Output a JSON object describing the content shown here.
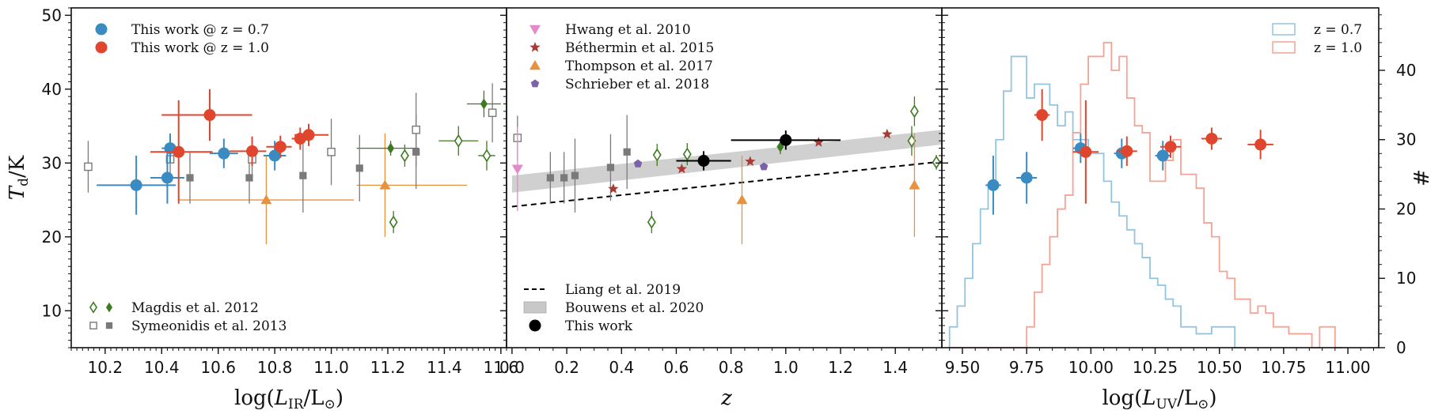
{
  "colors": {
    "blue": "#3a8bc2",
    "red": "#e0462d",
    "green": "#3e7a22",
    "grey": "#7a7a7a",
    "pink": "#e58ac8",
    "brown": "#a83b36",
    "orange": "#e8913f",
    "purple": "#7b62a9",
    "band": "#c8c8c8",
    "hist_blue": "#93c4e0",
    "hist_red": "#f4a394"
  },
  "chart_data": [
    {
      "type": "scatter",
      "xlabel": "log(L_IR/L_⊙)",
      "ylabel": "T_d/K",
      "xlim": [
        10.08,
        11.62
      ],
      "ylim": [
        5,
        51
      ],
      "xticks": [
        "10.2",
        "10.4",
        "10.6",
        "10.8",
        "11.0",
        "11.2",
        "11.4",
        "11.6"
      ],
      "yticks": [
        "10",
        "20",
        "30",
        "40",
        "50"
      ],
      "legend_top": [
        "This work @ z = 0.7",
        "This work @ z = 1.0"
      ],
      "legend_bottom": [
        "Magdis et al. 2012",
        "Symeonidis et al. 2013"
      ],
      "series": [
        {
          "name": "This work @ z = 0.7",
          "color": "blue",
          "marker": "circle",
          "points": [
            [
              10.31,
              27,
              0.14,
              0.14,
              4
            ],
            [
              10.42,
              28,
              0.06,
              0.06,
              3.5
            ],
            [
              10.43,
              32,
              0.03,
              0.03,
              2
            ],
            [
              10.62,
              31.3,
              0.05,
              0.05,
              2
            ],
            [
              10.8,
              31,
              0.04,
              0.04,
              2
            ]
          ]
        },
        {
          "name": "This work @ z = 1.0",
          "color": "red",
          "marker": "circle",
          "points": [
            [
              10.46,
              31.5,
              0.1,
              0.12,
              7
            ],
            [
              10.57,
              36.5,
              0.17,
              0.15,
              3.5
            ],
            [
              10.72,
              31.6,
              0.08,
              0.05,
              2
            ],
            [
              10.82,
              32.2,
              0.05,
              0.04,
              1.5
            ],
            [
              10.89,
              33.3,
              0.03,
              0.03,
              1.5
            ],
            [
              10.92,
              33.8,
              0.05,
              0.07,
              1.5
            ]
          ]
        },
        {
          "name": "Magdis et al. 2012",
          "color": "green",
          "marker": "diamond",
          "points": [
            [
              11.21,
              32,
              0.12,
              0.1,
              1,
              false
            ],
            [
              11.54,
              38,
              0.06,
              0.06,
              1.8,
              false
            ],
            [
              11.22,
              22,
              0.01,
              0.01,
              1.5,
              true
            ],
            [
              11.26,
              31,
              0.01,
              0.01,
              1.5,
              true
            ],
            [
              11.45,
              33,
              0.07,
              0.07,
              2,
              true
            ],
            [
              11.55,
              31,
              0.03,
              0.03,
              2,
              true
            ]
          ]
        },
        {
          "name": "Symeonidis et al. 2013",
          "color": "grey",
          "marker": "square",
          "points": [
            [
              10.5,
              28,
              0,
              0,
              3.5,
              false
            ],
            [
              10.71,
              28,
              0,
              0,
              3.5,
              false
            ],
            [
              10.9,
              28.3,
              0,
              0,
              5,
              false
            ],
            [
              11.1,
              29.3,
              0,
              0,
              4.5,
              false
            ],
            [
              11.3,
              31.5,
              0,
              0,
              5,
              false
            ],
            [
              10.14,
              29.5,
              0,
              0,
              3.5,
              true
            ],
            [
              10.43,
              30.5,
              0,
              0,
              3,
              true
            ],
            [
              10.72,
              30.5,
              0,
              0,
              3,
              true
            ],
            [
              11.0,
              31.5,
              0,
              0,
              4.5,
              true
            ],
            [
              11.3,
              34.5,
              0,
              0,
              5,
              true
            ],
            [
              11.57,
              36.8,
              0,
              0,
              4,
              true
            ]
          ]
        },
        {
          "name": "Thompson et al. 2017",
          "color": "orange",
          "marker": "triangle-up",
          "points": [
            [
              10.77,
              25,
              0.31,
              0.31,
              6
            ],
            [
              11.19,
              27,
              0.1,
              0.29,
              7
            ]
          ]
        }
      ]
    },
    {
      "type": "scatter",
      "xlabel": "z",
      "ylabel": "",
      "xlim": [
        -0.02,
        1.57
      ],
      "ylim": [
        5,
        51
      ],
      "xticks": [
        "0.0",
        "0.2",
        "0.4",
        "0.6",
        "0.8",
        "1.0",
        "1.2",
        "1.4"
      ],
      "legend_top": [
        "Hwang et al. 2010",
        "Béthermin et al. 2015",
        "Thompson et al. 2017",
        "Schrieber et al. 2018"
      ],
      "legend_bottom": [
        "Liang et al. 2019",
        "Bouwens et al. 2020",
        "This work"
      ],
      "liang_line": [
        [
          0.0,
          24.1
        ],
        [
          1.57,
          30.2
        ]
      ],
      "bouwens_band": {
        "lower": [
          [
            0.0,
            26.0
          ],
          [
            1.57,
            32.5
          ]
        ],
        "upper": [
          [
            0.0,
            28.3
          ],
          [
            1.57,
            34.5
          ]
        ]
      },
      "series": [
        {
          "name": "This work",
          "color": "black",
          "marker": "circle",
          "points": [
            [
              0.7,
              30.3,
              0.1,
              0.1,
              1.3
            ],
            [
              1.0,
              33.1,
              0.2,
              0.2,
              1.3
            ]
          ]
        },
        {
          "name": "Hwang et al. 2010",
          "color": "pink",
          "marker": "triangle-down",
          "points": [
            [
              0.02,
              29.2,
              0,
              0,
              5.7
            ]
          ]
        },
        {
          "name": "Béthermin et al. 2015",
          "color": "brown",
          "marker": "star",
          "points": [
            [
              0.37,
              26.5
            ],
            [
              0.62,
              29.2
            ],
            [
              0.87,
              30.2
            ],
            [
              1.12,
              32.8
            ],
            [
              1.37,
              33.9
            ]
          ]
        },
        {
          "name": "Thompson et al. 2017",
          "color": "orange",
          "marker": "triangle-up",
          "points": [
            [
              0.84,
              25,
              0,
              0,
              6
            ],
            [
              1.47,
              27,
              0,
              0,
              7
            ]
          ]
        },
        {
          "name": "Schrieber et al. 2018",
          "color": "purple",
          "marker": "pentagon",
          "points": [
            [
              0.46,
              29.9
            ],
            [
              0.92,
              29.5
            ]
          ]
        },
        {
          "name": "Magdis et al. 2012",
          "color": "green",
          "marker": "diamond",
          "points": [
            [
              0.98,
              32.2,
              0,
              0,
              1,
              false
            ],
            [
              0.51,
              22,
              0,
              0,
              1.5,
              true
            ],
            [
              0.53,
              31.1,
              0,
              0,
              1.5,
              true
            ],
            [
              0.64,
              31.2,
              0,
              0,
              1.5,
              true
            ],
            [
              1.46,
              33,
              0,
              0,
              2,
              true
            ],
            [
              1.47,
              37,
              0,
              0,
              2,
              true
            ],
            [
              1.55,
              30.1,
              0,
              0,
              1,
              true
            ]
          ]
        },
        {
          "name": "Symeonidis et al. 2013",
          "color": "grey",
          "marker": "square",
          "points": [
            [
              0.14,
              28,
              0,
              0,
              3.5,
              false
            ],
            [
              0.19,
              28,
              0,
              0,
              3.5,
              false
            ],
            [
              0.23,
              28.3,
              0,
              0,
              5,
              false
            ],
            [
              0.36,
              29.4,
              0,
              0,
              4.5,
              false
            ],
            [
              0.42,
              31.5,
              0,
              0,
              5,
              false
            ],
            [
              0.02,
              33.4,
              0,
              0,
              3,
              true
            ]
          ]
        }
      ]
    },
    {
      "type": "bar",
      "xlabel": "log(L_UV/L_⊙)",
      "ylabel": "#",
      "xlim": [
        9.42,
        11.12
      ],
      "ylim_left": [
        5,
        51
      ],
      "ylim_right": [
        0,
        49
      ],
      "xticks": [
        "9.50",
        "9.75",
        "10.00",
        "10.25",
        "10.50",
        "10.75",
        "11.00"
      ],
      "yticks_right": [
        "0",
        "10",
        "20",
        "30",
        "40"
      ],
      "legend": [
        "z = 0.7",
        "z = 1.0"
      ],
      "bin_start": 9.45,
      "bin_width": 0.03,
      "series": [
        {
          "name": "z = 0.7",
          "color": "hist_blue",
          "counts": [
            3,
            6,
            10,
            15,
            20,
            23,
            30,
            37,
            42,
            42,
            36,
            38,
            38,
            35,
            32,
            34,
            30,
            30,
            28,
            28,
            24,
            21,
            19,
            17,
            15,
            13,
            10,
            9,
            7,
            6,
            3,
            3,
            2,
            2,
            3,
            3,
            3,
            0
          ]
        },
        {
          "name": "z = 1.0",
          "color": "hist_red",
          "counts": [
            0,
            0,
            0,
            0,
            0,
            0,
            0,
            0,
            0,
            0,
            3,
            8,
            12,
            16,
            20,
            22,
            31,
            38,
            42,
            42,
            44,
            40,
            42,
            36,
            32,
            31,
            24,
            24,
            27,
            30,
            25,
            25,
            23,
            18,
            16,
            11,
            10,
            7,
            7,
            5,
            6,
            5,
            3,
            3,
            2,
            2,
            2,
            0,
            3,
            3,
            0
          ]
        },
        {
          "name": "This work @ z = 0.7",
          "color": "blue",
          "marker": "circle",
          "axis": "left",
          "points": [
            [
              9.62,
              27,
              0.03,
              0.03,
              4
            ],
            [
              9.75,
              28,
              0.04,
              0.04,
              3.5
            ],
            [
              9.96,
              32,
              0.03,
              0.03,
              2
            ],
            [
              10.12,
              31.3,
              0.03,
              0.03,
              2
            ],
            [
              10.28,
              31,
              0.03,
              0.03,
              2
            ]
          ]
        },
        {
          "name": "This work @ z = 1.0",
          "color": "red",
          "marker": "circle",
          "axis": "left",
          "points": [
            [
              9.81,
              36.5,
              0.03,
              0.03,
              3.5
            ],
            [
              9.98,
              31.5,
              0.05,
              0.05,
              7
            ],
            [
              10.14,
              31.6,
              0.04,
              0.04,
              2
            ],
            [
              10.31,
              32.2,
              0.04,
              0.04,
              1.5
            ],
            [
              10.47,
              33.3,
              0.04,
              0.04,
              1.5
            ],
            [
              10.66,
              32.5,
              0.05,
              0.05,
              2
            ]
          ]
        }
      ]
    }
  ]
}
